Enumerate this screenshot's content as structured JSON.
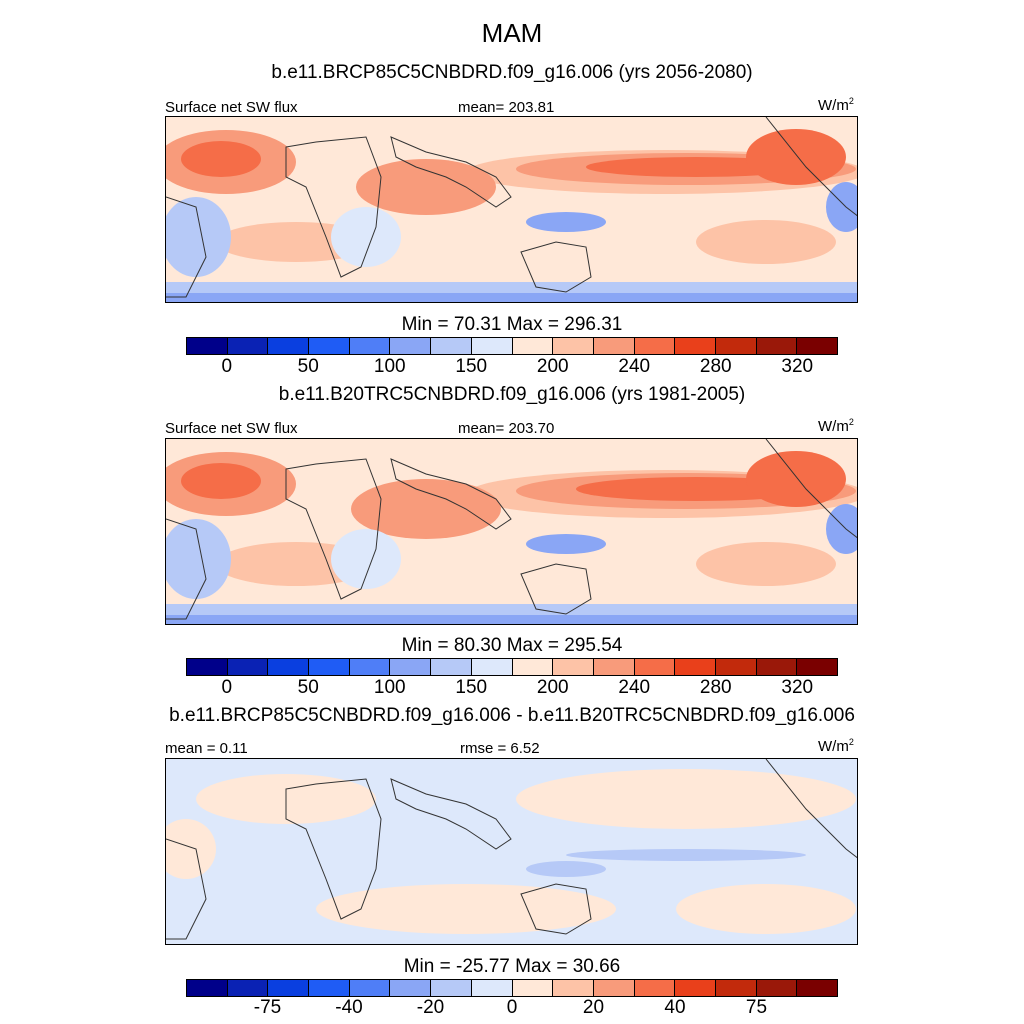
{
  "title": "MAM",
  "units": "W/m",
  "units_sup": "2",
  "colors": [
    "#00008a",
    "#0a22b4",
    "#0a3fe0",
    "#1f5cf5",
    "#4f7ef7",
    "#8aa6f5",
    "#b6c9f7",
    "#dde8fb",
    "#ffe8d8",
    "#fdc3a7",
    "#f89b7b",
    "#f56d48",
    "#e9401b",
    "#c22a0c",
    "#9a1809",
    "#7a0000"
  ],
  "panels": [
    {
      "subtitle": "b.e11.BRCP85C5CNBDRD.f09_g16.006 (yrs 2056-2080)",
      "left_label": "Surface net SW flux",
      "center_label": "mean= 203.81",
      "minmax": "Min =  70.31 Max = 296.31",
      "ticks": [
        "0",
        "50",
        "100",
        "150",
        "200",
        "240",
        "280",
        "320"
      ]
    },
    {
      "subtitle": "b.e11.B20TRC5CNBDRD.f09_g16.006 (yrs 1981-2005)",
      "left_label": "Surface net SW flux",
      "center_label": "mean= 203.70",
      "minmax": "Min =  80.30 Max = 295.54",
      "ticks": [
        "0",
        "50",
        "100",
        "150",
        "200",
        "240",
        "280",
        "320"
      ]
    },
    {
      "subtitle": "b.e11.BRCP85C5CNBDRD.f09_g16.006 - b.e11.B20TRC5CNBDRD.f09_g16.006",
      "left_label": "mean =   0.11",
      "center_label": "rmse =   6.52",
      "minmax": "Min = -25.77 Max =  30.66",
      "ticks": [
        "-75",
        "-40",
        "-20",
        "0",
        "20",
        "40",
        "75"
      ]
    }
  ]
}
